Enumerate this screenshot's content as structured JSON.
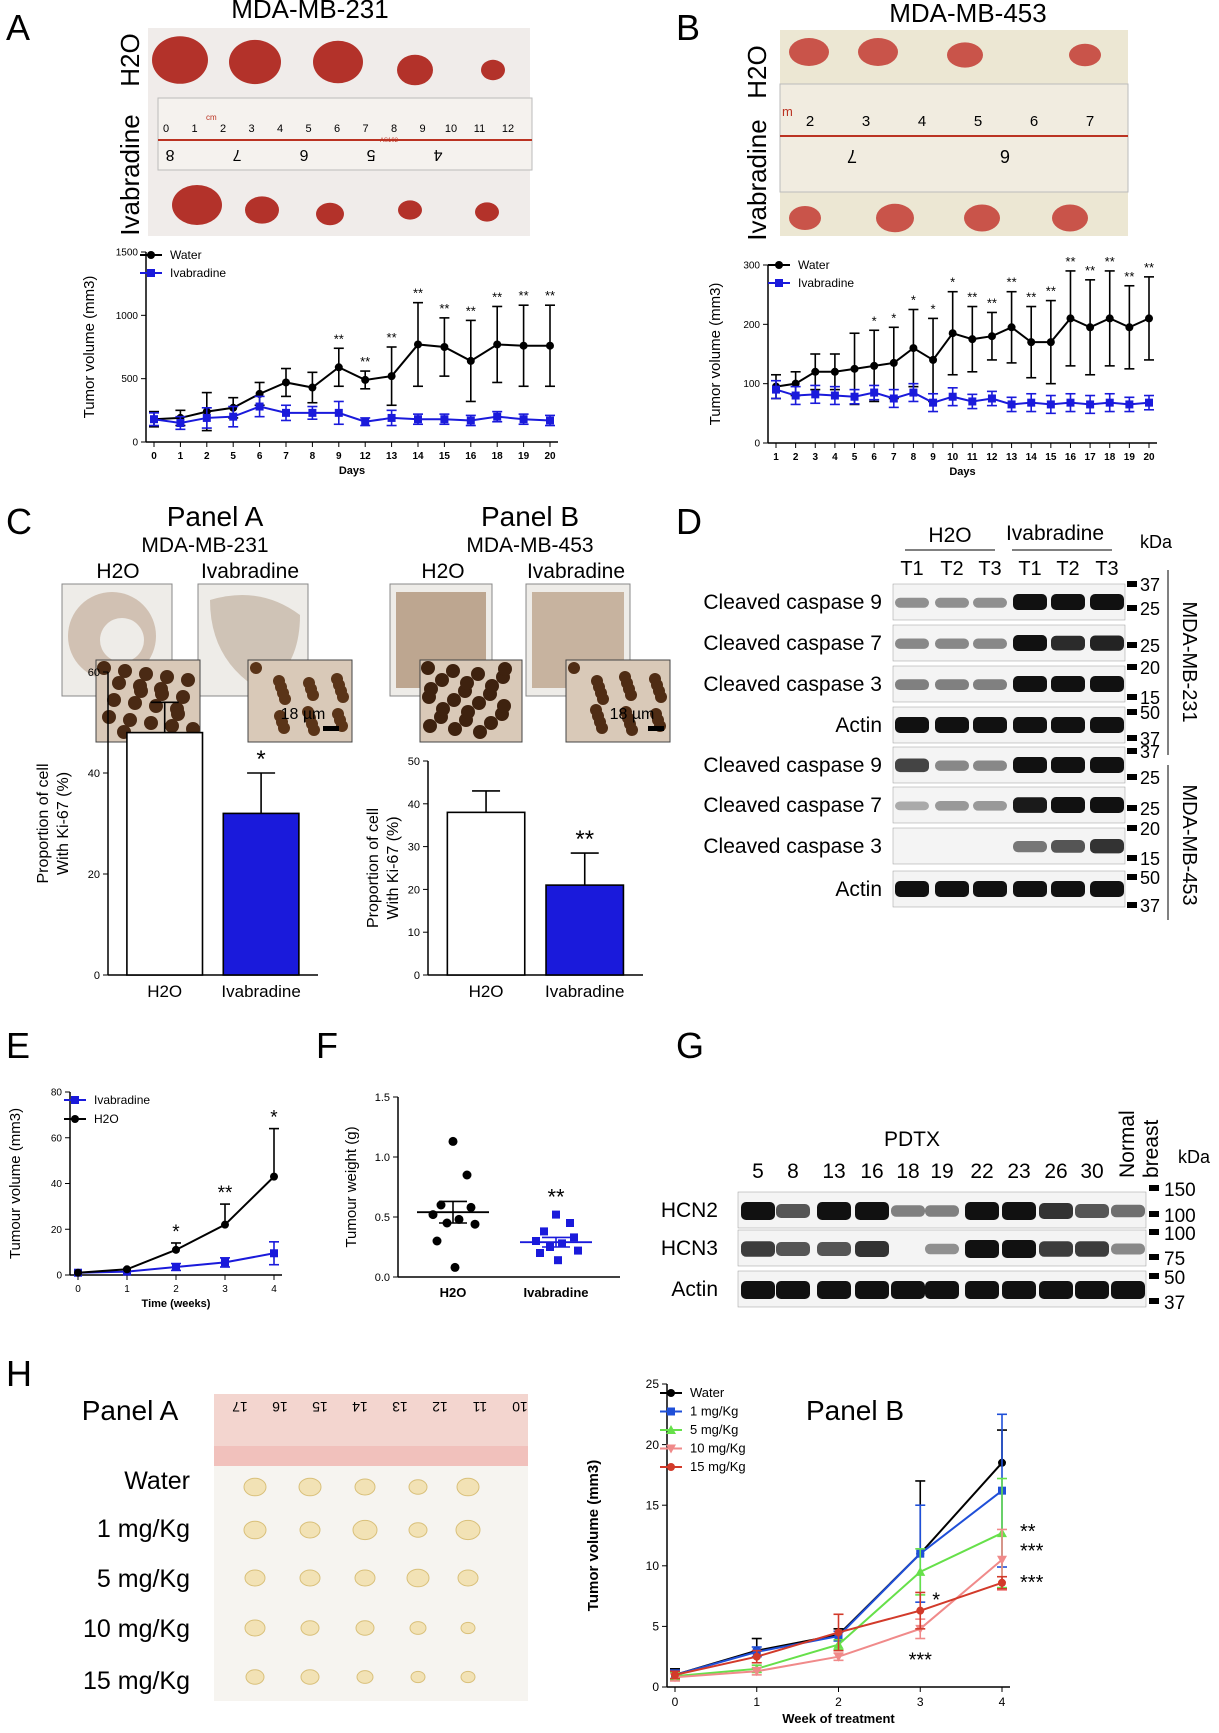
{
  "colors": {
    "water": "#000000",
    "ivabradine": "#1a1adb",
    "mg1": "#1f4fd8",
    "mg5": "#66e04a",
    "mg10": "#f08a8a",
    "mg15": "#d23a2a",
    "tumor_red": "#b3322a",
    "tumor_pale": "#f2e2b5",
    "ruler": "#f4f1ec",
    "ruler_pink": "#f3c7c3"
  },
  "figure": {
    "A": {
      "letter": "A",
      "title": "MDA-MB-231",
      "row_top": "H2O",
      "row_bottom": "Ivabradine",
      "ruler_numbers": [
        "0",
        "1",
        "2",
        "3",
        "4",
        "5",
        "6",
        "7",
        "8",
        "9",
        "10",
        "11",
        "12"
      ],
      "ruler_cm": "cm",
      "ruler_brand": "AS102",
      "ruler_inverted": [
        "8",
        "7",
        "6",
        "5",
        "4"
      ]
    },
    "B": {
      "letter": "B",
      "title": "MDA-MB-453",
      "row_top": "H2O",
      "row_bottom": "Ivabradine",
      "ruler_numbers": [
        "2",
        "3",
        "4",
        "5",
        "6",
        "7"
      ],
      "ruler_m": "m",
      "ruler_inverted": [
        "7",
        "6"
      ]
    },
    "C": {
      "letter": "C",
      "panel_a": {
        "title": "Panel A",
        "subtitle": "MDA-MB-231",
        "h2o": "H2O",
        "iva": "Ivabradine",
        "scale": "18 µm"
      },
      "panel_b": {
        "title": "Panel B",
        "subtitle": "MDA-MB-453",
        "h2o": "H2O",
        "iva": "Ivabradine",
        "scale": "18 µm"
      }
    },
    "D": {
      "letter": "D",
      "group_h2o": "H2O",
      "group_iva": "Ivabradine",
      "kda": "kDa",
      "lanes": [
        "T1",
        "T2",
        "T3",
        "T1",
        "T2",
        "T3"
      ],
      "rows": [
        "Cleaved caspase 9",
        "Cleaved caspase 7",
        "Cleaved caspase 3",
        "Actin",
        "Cleaved caspase 9",
        "Cleaved caspase 7",
        "Cleaved caspase 3",
        "Actin"
      ],
      "markers": [
        "37",
        "25",
        "25",
        "20",
        "15",
        "50",
        "37",
        "37",
        "25",
        "25",
        "20",
        "15",
        "50",
        "37"
      ],
      "cell_lines": [
        "MDA-MB-231",
        "MDA-MB-453"
      ]
    },
    "E": {
      "letter": "E"
    },
    "F": {
      "letter": "F"
    },
    "G": {
      "letter": "G",
      "title": "PDTX",
      "kda": "kDa",
      "lanes": [
        "5",
        "8",
        "13",
        "16",
        "18",
        "19",
        "22",
        "23",
        "26",
        "30"
      ],
      "normal_line1": "Normal",
      "normal_line2": "breast",
      "rows": [
        "HCN2",
        "HCN3",
        "Actin"
      ],
      "markers": [
        "150",
        "100",
        "100",
        "75",
        "50",
        "37"
      ]
    },
    "H": {
      "letter": "H",
      "panel_a": "Panel A",
      "panel_b": "Panel B",
      "doses": [
        "Water",
        "1 mg/Kg",
        "5 mg/Kg",
        "10 mg/Kg",
        "15 mg/Kg"
      ],
      "ruler_numbers": [
        "17",
        "16",
        "15",
        "14",
        "13",
        "12",
        "11",
        "10"
      ]
    }
  },
  "chart_data": [
    {
      "id": "A-line",
      "type": "line",
      "x": [
        "0",
        "1",
        "2",
        "5",
        "6",
        "7",
        "8",
        "9",
        "12",
        "13",
        "14",
        "15",
        "16",
        "18",
        "19",
        "20"
      ],
      "xlabel": "Days",
      "ylabel": "Tumor volume (mm3)",
      "ylim": [
        0,
        1500
      ],
      "yticks": [
        "0",
        "500",
        "1000",
        "1500"
      ],
      "legend": "top-left",
      "series": [
        {
          "name": "Water",
          "values": [
            180,
            190,
            240,
            270,
            380,
            470,
            430,
            590,
            490,
            520,
            770,
            750,
            640,
            770,
            760,
            760
          ],
          "err": [
            60,
            60,
            150,
            80,
            90,
            110,
            120,
            150,
            70,
            230,
            330,
            230,
            320,
            300,
            320,
            320
          ]
        },
        {
          "name": "Ivabradine",
          "values": [
            180,
            150,
            190,
            200,
            280,
            230,
            230,
            230,
            160,
            190,
            180,
            180,
            170,
            200,
            180,
            170
          ],
          "err": [
            50,
            50,
            80,
            80,
            80,
            60,
            50,
            90,
            30,
            60,
            40,
            40,
            40,
            40,
            40,
            40
          ]
        }
      ],
      "annotations": [
        "",
        "",
        "",
        "",
        "",
        "",
        "",
        "**",
        "**",
        "**",
        "**",
        "**",
        "**",
        "**",
        "**",
        "**"
      ]
    },
    {
      "id": "B-line",
      "type": "line",
      "x": [
        "1",
        "2",
        "3",
        "4",
        "5",
        "6",
        "7",
        "8",
        "9",
        "10",
        "11",
        "12",
        "13",
        "14",
        "15",
        "16",
        "17",
        "18",
        "19",
        "20"
      ],
      "xlabel": "Days",
      "ylabel": "Tumor volume (mm3)",
      "ylim": [
        0,
        300
      ],
      "yticks": [
        "0",
        "100",
        "200",
        "300"
      ],
      "legend": "top-left",
      "series": [
        {
          "name": "Water",
          "values": [
            95,
            100,
            120,
            120,
            125,
            130,
            135,
            160,
            140,
            185,
            175,
            180,
            195,
            170,
            170,
            210,
            195,
            210,
            195,
            210
          ],
          "err": [
            20,
            20,
            30,
            30,
            60,
            60,
            60,
            65,
            70,
            70,
            55,
            40,
            60,
            60,
            70,
            80,
            80,
            80,
            70,
            70
          ]
        },
        {
          "name": "Ivabradine",
          "values": [
            90,
            80,
            82,
            80,
            78,
            85,
            75,
            85,
            68,
            78,
            70,
            75,
            65,
            68,
            65,
            68,
            65,
            68,
            65,
            68
          ],
          "err": [
            15,
            15,
            15,
            15,
            12,
            12,
            15,
            15,
            15,
            15,
            12,
            12,
            12,
            15,
            15,
            15,
            15,
            15,
            12,
            12
          ]
        }
      ],
      "annotations": [
        "",
        "",
        "",
        "",
        "",
        "*",
        "*",
        "*",
        "*",
        "*",
        "**",
        "**",
        "**",
        "**",
        "**",
        "**",
        "**",
        "**",
        "**",
        "**"
      ]
    },
    {
      "id": "C-bar-A",
      "type": "bar",
      "categories": [
        "H2O",
        "Ivabradine"
      ],
      "values": [
        48,
        32
      ],
      "err": [
        6,
        8
      ],
      "ylabel": "Proportion of cell With Ki-67 (%)",
      "ylim": [
        0,
        60
      ],
      "yticks": [
        "0",
        "20",
        "40",
        "60"
      ],
      "annotation": "*"
    },
    {
      "id": "C-bar-B",
      "type": "bar",
      "categories": [
        "H2O",
        "Ivabradine"
      ],
      "values": [
        38,
        21
      ],
      "err": [
        5,
        7.5
      ],
      "ylabel": "Proportion of cell With Ki-67 (%)",
      "ylim": [
        0,
        50
      ],
      "yticks": [
        "0",
        "10",
        "20",
        "30",
        "40",
        "50"
      ],
      "annotation": "**"
    },
    {
      "id": "E-line",
      "type": "line",
      "x": [
        "0",
        "1",
        "2",
        "3",
        "4"
      ],
      "xlabel": "Time (weeks)",
      "ylabel": "Tumour volume (mm3)",
      "ylim": [
        0,
        80
      ],
      "yticks": [
        "0",
        "20",
        "40",
        "60",
        "80"
      ],
      "legend": "top-left",
      "series": [
        {
          "name": "Ivabradine",
          "values": [
            1,
            1.5,
            3.5,
            5.5,
            9.5
          ],
          "err": [
            0,
            0,
            1.5,
            2,
            5
          ]
        },
        {
          "name": "H2O",
          "values": [
            1,
            2.5,
            11,
            22,
            43
          ],
          "err": [
            0,
            0,
            3,
            9,
            21
          ]
        }
      ],
      "annotations": [
        "",
        "",
        "*",
        "**",
        "*"
      ]
    },
    {
      "id": "F-scatter",
      "type": "scatter",
      "categories": [
        "H2O",
        "Ivabradine"
      ],
      "ylabel": "Tumour weight (g)",
      "ylim": [
        0,
        1.5
      ],
      "yticks": [
        "0.0",
        "0.5",
        "1.0",
        "1.5"
      ],
      "series": [
        {
          "name": "H2O",
          "values": [
            1.13,
            0.85,
            0.6,
            0.58,
            0.52,
            0.48,
            0.45,
            0.44,
            0.3,
            0.08
          ],
          "mean": 0.54,
          "sem": 0.09
        },
        {
          "name": "Ivabradine",
          "values": [
            0.52,
            0.45,
            0.38,
            0.33,
            0.3,
            0.28,
            0.25,
            0.22,
            0.2,
            0.14
          ],
          "mean": 0.29,
          "sem": 0.04
        }
      ],
      "annotation": "**"
    },
    {
      "id": "H-line",
      "type": "line",
      "x": [
        "0",
        "1",
        "2",
        "3",
        "4"
      ],
      "xlabel": "Week of treatment",
      "ylabel": "Tumor volume (mm3)",
      "ylim": [
        0,
        25
      ],
      "yticks": [
        "0",
        "5",
        "10",
        "15",
        "20",
        "25"
      ],
      "legend": "top-left",
      "series": [
        {
          "name": "Water",
          "values": [
            1.0,
            3.0,
            4.3,
            11.0,
            18.5
          ],
          "err": [
            0.5,
            1.0,
            0.5,
            6.0,
            2.7
          ]
        },
        {
          "name": "1 mg/Kg",
          "values": [
            1.0,
            2.9,
            4.2,
            11.0,
            16.2
          ],
          "err": [
            0.4,
            0.4,
            0.4,
            4.0,
            6.3
          ]
        },
        {
          "name": "5 mg/Kg",
          "values": [
            0.9,
            1.5,
            3.5,
            9.5,
            12.7
          ],
          "err": [
            0.3,
            0.3,
            0.4,
            1.9,
            4.5
          ]
        },
        {
          "name": "10 mg/Kg",
          "values": [
            0.8,
            1.3,
            2.5,
            4.8,
            10.5
          ],
          "err": [
            0.3,
            0.3,
            0.3,
            0.8,
            2.5
          ]
        },
        {
          "name": "15 mg/Kg",
          "values": [
            1.0,
            2.5,
            4.5,
            6.3,
            8.6
          ],
          "err": [
            0.3,
            0.5,
            1.5,
            1.5,
            0.5
          ]
        }
      ],
      "annotations_right": [
        "**",
        "***",
        "***"
      ],
      "annotation_w3_15": "*",
      "annotation_w3_10": "***"
    }
  ]
}
